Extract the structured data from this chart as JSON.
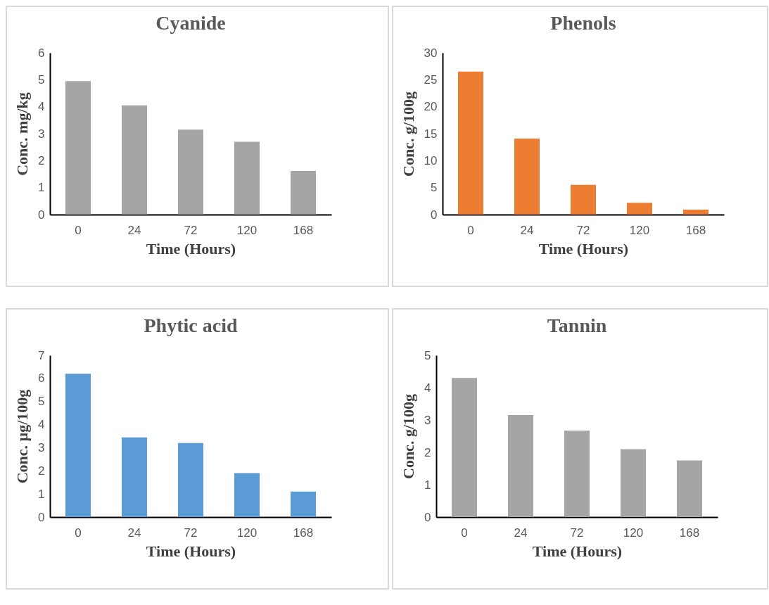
{
  "chart_data": [
    {
      "type": "bar",
      "title": "Cyanide",
      "xlabel": "Time (Hours)",
      "ylabel": "Conc. mg/kg",
      "categories": [
        "0",
        "24",
        "72",
        "120",
        "168"
      ],
      "values": [
        4.95,
        4.05,
        3.15,
        2.7,
        1.62
      ],
      "color": "#a5a5a5",
      "ylim": [
        0,
        6
      ],
      "yticks": [
        0,
        1,
        2,
        3,
        4,
        5,
        6
      ]
    },
    {
      "type": "bar",
      "title": "Phenols",
      "xlabel": "Time (Hours)",
      "ylabel": "Conc. g/100g",
      "categories": [
        "0",
        "24",
        "72",
        "120",
        "168"
      ],
      "values": [
        26.5,
        14.1,
        5.5,
        2.2,
        0.9
      ],
      "color": "#ed7d31",
      "ylim": [
        0,
        30
      ],
      "yticks": [
        0,
        5,
        10,
        15,
        20,
        25,
        30
      ]
    },
    {
      "type": "bar",
      "title": "Phytic acid",
      "xlabel": "Time (Hours)",
      "ylabel": "Conc. µg/100g",
      "categories": [
        "0",
        "24",
        "72",
        "120",
        "168"
      ],
      "values": [
        6.2,
        3.45,
        3.2,
        1.9,
        1.1
      ],
      "color": "#5b9bd5",
      "ylim": [
        0,
        7
      ],
      "yticks": [
        0,
        1,
        2,
        3,
        4,
        5,
        6,
        7
      ]
    },
    {
      "type": "bar",
      "title": "Tannin",
      "xlabel": "Time (Hours)",
      "ylabel": "Conc. g/100g",
      "categories": [
        "0",
        "24",
        "72",
        "120",
        "168"
      ],
      "values": [
        4.3,
        3.15,
        2.67,
        2.1,
        1.75
      ],
      "color": "#a5a5a5",
      "ylim": [
        0,
        5
      ],
      "yticks": [
        0,
        1,
        2,
        3,
        4,
        5
      ]
    }
  ]
}
